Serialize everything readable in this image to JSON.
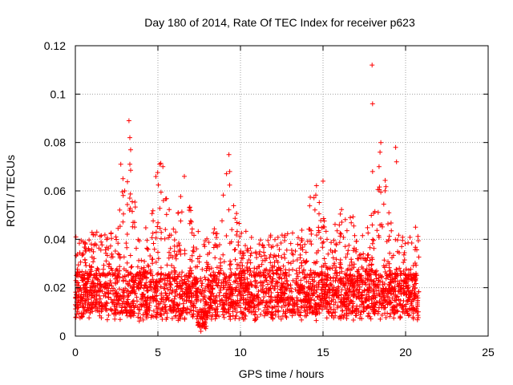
{
  "chart_data": {
    "type": "scatter",
    "title": "Day 180 of 2014, Rate Of TEC Index for receiver p623",
    "xlabel": "GPS time / hours",
    "ylabel": "ROTI / TECUs",
    "xlim": [
      0,
      25
    ],
    "ylim": [
      0,
      0.12
    ],
    "xticks": [
      0,
      5,
      10,
      15,
      20,
      25
    ],
    "xtick_labels": [
      "0",
      "5",
      "10",
      "15",
      "20",
      "25"
    ],
    "yticks": [
      0,
      0.02,
      0.04,
      0.06,
      0.08,
      0.1,
      0.12
    ],
    "ytick_labels": [
      "0",
      "0.02",
      "0.04",
      "0.06",
      "0.08",
      "0.1",
      "0.12"
    ],
    "grid": true,
    "marker": "+",
    "series_color": "#ff0000",
    "data_time_range_hours": [
      0.0,
      20.8
    ],
    "typical_band": [
      0.008,
      0.025
    ],
    "notable_points": [
      {
        "x": 3.25,
        "y": 0.089
      },
      {
        "x": 3.3,
        "y": 0.082
      },
      {
        "x": 3.35,
        "y": 0.077
      },
      {
        "x": 2.75,
        "y": 0.071
      },
      {
        "x": 3.3,
        "y": 0.071
      },
      {
        "x": 5.1,
        "y": 0.071
      },
      {
        "x": 5.3,
        "y": 0.07
      },
      {
        "x": 6.6,
        "y": 0.066
      },
      {
        "x": 9.3,
        "y": 0.075
      },
      {
        "x": 9.35,
        "y": 0.068
      },
      {
        "x": 15.0,
        "y": 0.064
      },
      {
        "x": 17.97,
        "y": 0.112
      },
      {
        "x": 18.0,
        "y": 0.096
      },
      {
        "x": 18.5,
        "y": 0.08
      },
      {
        "x": 18.45,
        "y": 0.076
      },
      {
        "x": 19.4,
        "y": 0.078
      },
      {
        "x": 19.45,
        "y": 0.072
      },
      {
        "x": 18.0,
        "y": 0.068
      },
      {
        "x": 20.6,
        "y": 0.045
      },
      {
        "x": 7.6,
        "y": 0.002
      },
      {
        "x": 7.8,
        "y": 0.004
      }
    ]
  }
}
